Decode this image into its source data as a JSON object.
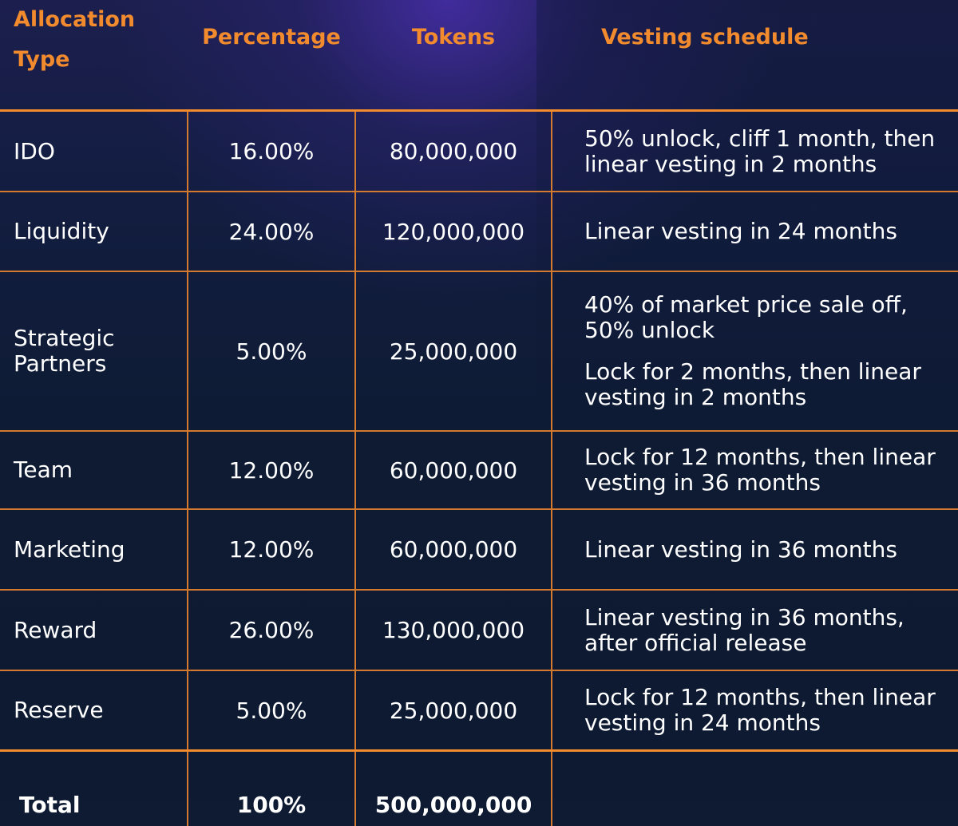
{
  "headers": {
    "allocation_type": "Allocation Type",
    "percentage": "Percentage",
    "tokens": "Tokens",
    "vesting_schedule": "Vesting schedule"
  },
  "rows": [
    {
      "type": "IDO",
      "percentage": "16.00%",
      "tokens": "80,000,000",
      "vesting": [
        "50% unlock, cliff 1 month, then linear vesting in 2 months"
      ]
    },
    {
      "type": "Liquidity",
      "percentage": "24.00%",
      "tokens": "120,000,000",
      "vesting": [
        "Linear vesting in 24 months"
      ]
    },
    {
      "type": "Strategic Partners",
      "percentage": "5.00%",
      "tokens": "25,000,000",
      "vesting": [
        "40% of market price sale off, 50% unlock",
        "Lock for 2 months, then linear vesting in 2 months"
      ]
    },
    {
      "type": "Team",
      "percentage": "12.00%",
      "tokens": "60,000,000",
      "vesting": [
        "Lock for 12 months, then linear vesting in 36 months"
      ]
    },
    {
      "type": "Marketing",
      "percentage": "12.00%",
      "tokens": "60,000,000",
      "vesting": [
        "Linear vesting in 36 months"
      ]
    },
    {
      "type": "Reward",
      "percentage": "26.00%",
      "tokens": "130,000,000",
      "vesting": [
        "Linear vesting in 36 months, after official release"
      ]
    },
    {
      "type": "Reserve",
      "percentage": "5.00%",
      "tokens": "25,000,000",
      "vesting": [
        "Lock for 12 months, then linear vesting in 24 months"
      ]
    }
  ],
  "total": {
    "label": "Total",
    "percentage": "100%",
    "tokens": "500,000,000"
  },
  "colors": {
    "accent": "#f28a2e",
    "background": "#0e1b33",
    "glow": "#482eaa"
  }
}
